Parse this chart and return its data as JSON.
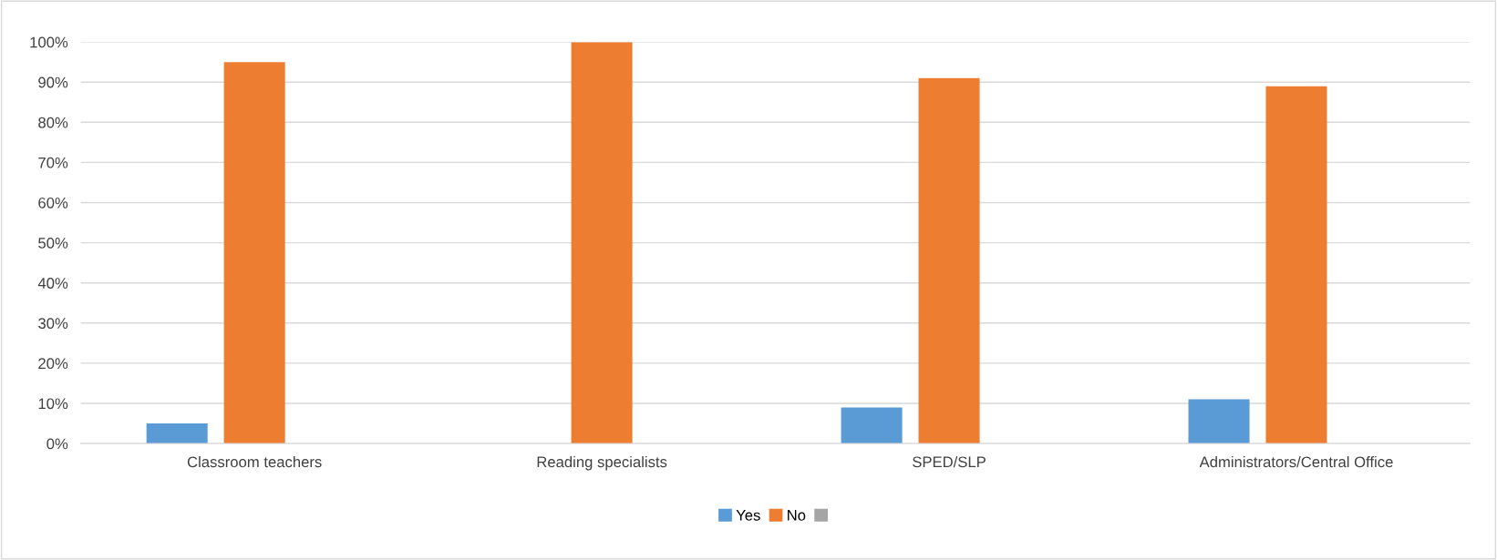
{
  "chart_data": {
    "type": "bar",
    "categories": [
      "Classroom teachers",
      "Reading specialists",
      "SPED/SLP",
      "Administrators/Central Office"
    ],
    "series": [
      {
        "name": "Yes",
        "color": "#5b9bd5",
        "values": [
          5,
          0,
          9,
          11
        ]
      },
      {
        "name": "No",
        "color": "#ed7d31",
        "values": [
          95,
          100,
          91,
          89
        ]
      },
      {
        "color": "#a5a5a5",
        "values": [
          null,
          null,
          null,
          null
        ]
      }
    ],
    "ylim": [
      0,
      100
    ],
    "yticks": [
      {
        "value": 0,
        "label": "0%"
      },
      {
        "value": 10,
        "label": "10%"
      },
      {
        "value": 20,
        "label": "20%"
      },
      {
        "value": 30,
        "label": "30%"
      },
      {
        "value": 40,
        "label": "40%"
      },
      {
        "value": 50,
        "label": "50%"
      },
      {
        "value": 60,
        "label": "60%"
      },
      {
        "value": 70,
        "label": "70%"
      },
      {
        "value": 80,
        "label": "80%"
      },
      {
        "value": 90,
        "label": "90%"
      },
      {
        "value": 100,
        "label": "100%"
      }
    ],
    "grid": "y",
    "legend": "bottom"
  }
}
